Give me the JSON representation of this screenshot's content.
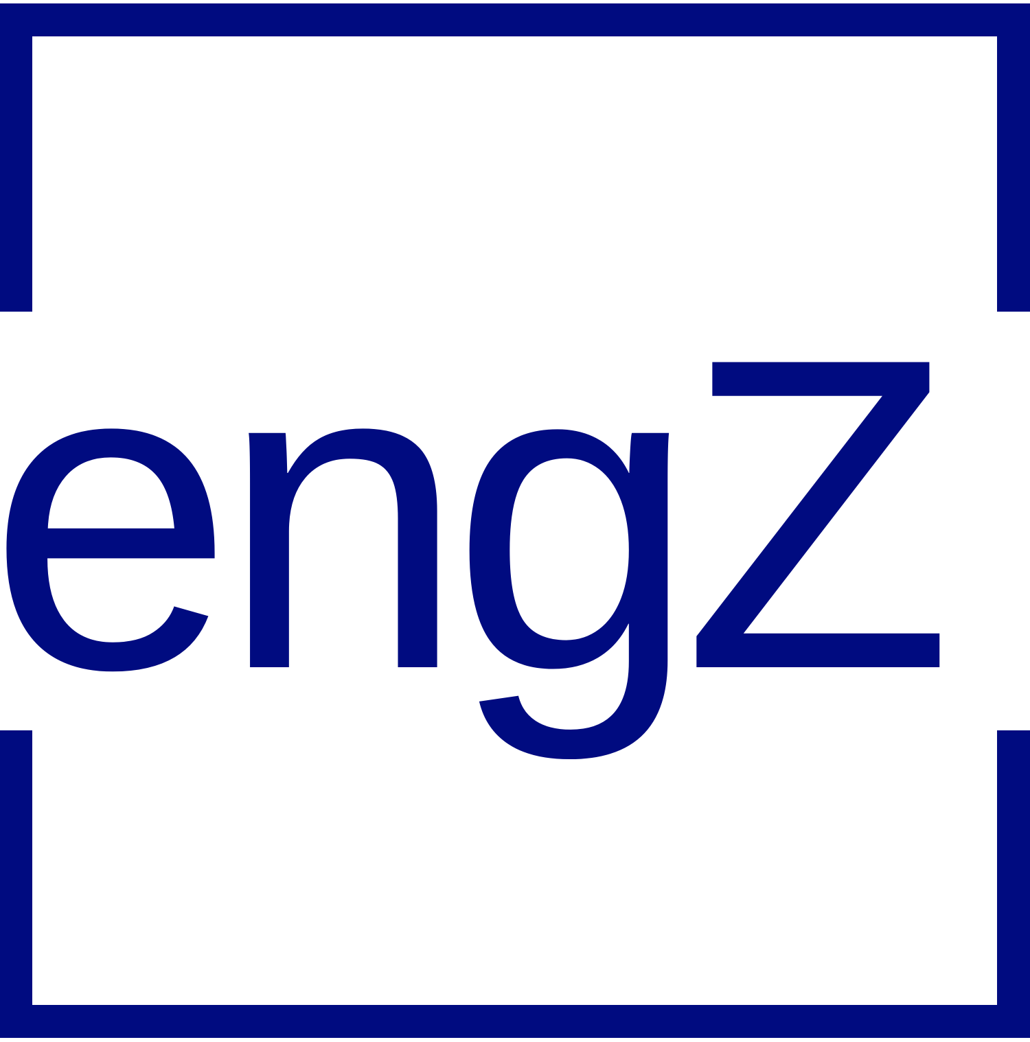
{
  "logo": {
    "wordmark": "engZ",
    "brand_color": "#000b80",
    "background_color": "#ffffff"
  }
}
